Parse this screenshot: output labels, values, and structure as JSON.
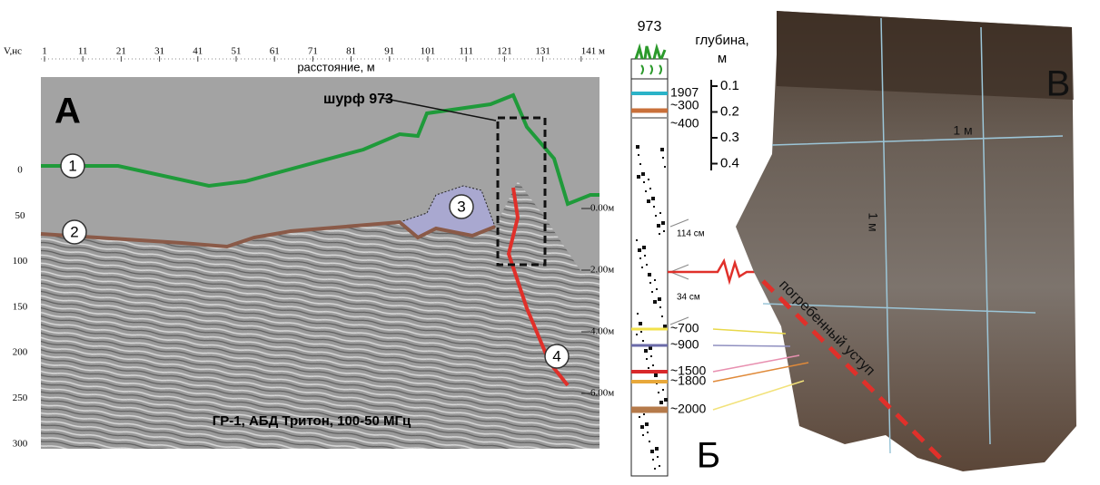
{
  "panel_a": {
    "label": "А",
    "y_axis_label": "V,нс",
    "x_axis_label": "расстояние, м",
    "x_ticks": [
      "1",
      "11",
      "21",
      "31",
      "41",
      "51",
      "61",
      "71",
      "81",
      "91",
      "101",
      "111",
      "121",
      "131",
      "141 м"
    ],
    "y_ticks": [
      "0",
      "50",
      "100",
      "150",
      "200",
      "250",
      "300"
    ],
    "depth_ticks": [
      "0.00м",
      "2.00м",
      "4.00м",
      "6.00м"
    ],
    "pit_label": "шурф 973",
    "markers": [
      "1",
      "2",
      "3",
      "4"
    ],
    "caption": "ГР-1, АБД Тритон, 100-50 МГц"
  },
  "panel_b": {
    "label": "Б",
    "title": "973",
    "ages": [
      "1907",
      "~300",
      "~400",
      "~700",
      "~900",
      "~1500",
      "~1800",
      "~2000"
    ],
    "thicknesses": [
      "114 см",
      "34 см"
    ],
    "depth_label": "глубина,",
    "depth_unit": "м",
    "depth_ticks": [
      "0.1",
      "0.2",
      "0.3",
      "0.4"
    ]
  },
  "panel_c": {
    "label": "В",
    "grid_labels": [
      "1 м",
      "1 м"
    ],
    "scarp_label": "погребенный уступ"
  }
}
